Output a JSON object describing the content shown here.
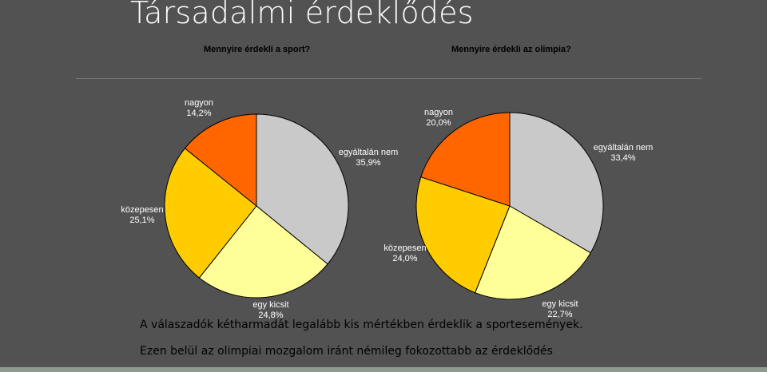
{
  "title": "Társadalmi érdeklődés",
  "captions": [
    "A válaszadók kétharmadát legalább kis mértékben érdeklik a sportesemények.",
    "Ezen belül az olimpiai mozgalom iránt némileg fokozottabb az érdeklődés"
  ],
  "colors": {
    "egyaltalan_nem": "#c9c9c9",
    "egy_kicsit": "#ffff99",
    "kozepesen": "#ffcc00",
    "nagyon": "#ff6600"
  },
  "chart_data": [
    {
      "type": "pie",
      "title": "Mennyire érdekli a sport?",
      "slices": [
        {
          "key": "egyaltalan_nem",
          "name": "egyáltalán nem",
          "value": 35.9,
          "value_label": "35,9%"
        },
        {
          "key": "egy_kicsit",
          "name": "egy kicsit",
          "value": 24.8,
          "value_label": "24,8%"
        },
        {
          "key": "kozepesen",
          "name": "közepesen",
          "value": 25.1,
          "value_label": "25,1%"
        },
        {
          "key": "nagyon",
          "name": "nagyon",
          "value": 14.2,
          "value_label": "14,2%"
        }
      ]
    },
    {
      "type": "pie",
      "title": "Mennyire érdekli az olimpia?",
      "slices": [
        {
          "key": "egyaltalan_nem",
          "name": "egyáltalán nem",
          "value": 33.4,
          "value_label": "33,4%"
        },
        {
          "key": "egy_kicsit",
          "name": "egy kicsit",
          "value": 22.7,
          "value_label": "22,7%"
        },
        {
          "key": "kozepesen",
          "name": "közepesen",
          "value": 24.0,
          "value_label": "24,0%"
        },
        {
          "key": "nagyon",
          "name": "nagyon",
          "value": 20.0,
          "value_label": "20,0%"
        }
      ]
    }
  ]
}
